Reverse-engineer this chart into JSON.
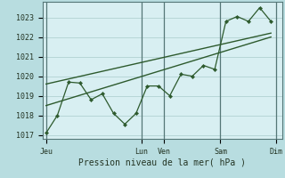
{
  "bg_color": "#b8dde0",
  "plot_bg_color": "#d8eff2",
  "grid_color": "#aacccc",
  "vline_color": "#557777",
  "line_color": "#2d5a2d",
  "marker_color": "#2d5a2d",
  "title": "Pression niveau de la mer( hPa )",
  "ylim": [
    1016.8,
    1023.8
  ],
  "yticks": [
    1017,
    1018,
    1019,
    1020,
    1021,
    1022,
    1023
  ],
  "x_day_labels": [
    "Jeu",
    "Lun",
    "Ven",
    "Sam",
    "Dim"
  ],
  "x_day_positions": [
    0,
    8.5,
    10.5,
    15.5,
    20.5
  ],
  "xlim": [
    -0.3,
    21.0
  ],
  "main_x": [
    0,
    1,
    2,
    3,
    4,
    5,
    6,
    7,
    8,
    9,
    10,
    11,
    12,
    13,
    14,
    15,
    16,
    17,
    18,
    19,
    20
  ],
  "main_y": [
    1017.1,
    1018.0,
    1019.7,
    1019.65,
    1018.8,
    1019.1,
    1018.1,
    1017.55,
    1018.1,
    1019.5,
    1019.5,
    1019.0,
    1020.1,
    1020.0,
    1020.55,
    1020.35,
    1022.8,
    1023.05,
    1022.8,
    1023.5,
    1022.8
  ],
  "trend1_x": [
    0,
    20
  ],
  "trend1_y": [
    1019.6,
    1022.2
  ],
  "trend2_x": [
    0,
    20
  ],
  "trend2_y": [
    1018.5,
    1022.0
  ],
  "vline_positions": [
    0,
    8.5,
    10.5,
    15.5,
    20.5
  ]
}
